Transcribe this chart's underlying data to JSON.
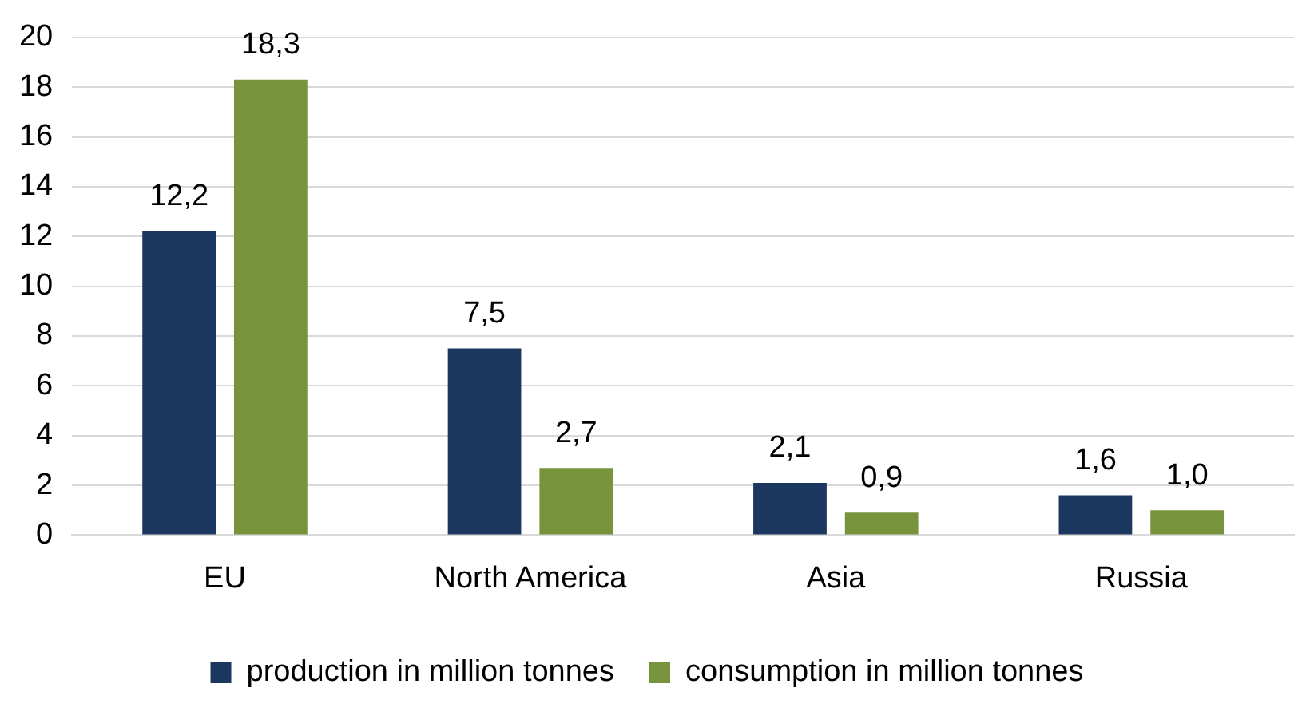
{
  "chart_data": {
    "type": "bar",
    "categories": [
      "EU",
      "North America",
      "Asia",
      "Russia"
    ],
    "series": [
      {
        "name": "production in million tonnes",
        "color": "#1b365f",
        "values": [
          12.2,
          7.5,
          2.1,
          1.6
        ],
        "value_labels": [
          "12,2",
          "7,5",
          "2,1",
          "1,6"
        ]
      },
      {
        "name": "consumption in million tonnes",
        "color": "#77933c",
        "values": [
          18.3,
          2.7,
          0.9,
          1.0
        ],
        "value_labels": [
          "18,3",
          "2,7",
          "0,9",
          "1,0"
        ]
      }
    ],
    "ylim": [
      0,
      20
    ],
    "yticks": [
      0,
      2,
      4,
      6,
      8,
      10,
      12,
      14,
      16,
      18,
      20
    ],
    "grid": "y",
    "legend": "bottom"
  }
}
